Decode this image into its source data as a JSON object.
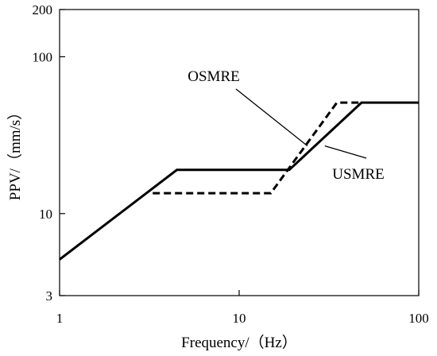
{
  "chart_data": {
    "type": "line",
    "title": "",
    "xlabel": "Frequency/（Hz）",
    "ylabel": "PPV/（mm/s）",
    "xscale": "log",
    "yscale": "log",
    "xlim": [
      1,
      100
    ],
    "ylim": [
      3,
      200
    ],
    "xticks": [
      1,
      10,
      100
    ],
    "xtick_labels": [
      "1",
      "10",
      "100"
    ],
    "yticks": [
      3,
      10,
      100,
      200
    ],
    "ytick_labels": [
      "3",
      "10",
      "100",
      "200"
    ],
    "grid": false,
    "legend": "none",
    "series": [
      {
        "name": "USMRE",
        "style": "solid",
        "color": "#000000",
        "x": [
          1,
          4.5,
          19,
          48,
          100
        ],
        "y": [
          5.1,
          19,
          19,
          51,
          51
        ]
      },
      {
        "name": "OSMRE",
        "style": "dashed",
        "color": "#000000",
        "x": [
          3.3,
          15,
          35,
          48
        ],
        "y": [
          13.5,
          13.5,
          51,
          51
        ]
      }
    ],
    "annotations": [
      {
        "text": "OSMRE",
        "series": "OSMRE"
      },
      {
        "text": "USMRE",
        "series": "USMRE"
      }
    ]
  }
}
